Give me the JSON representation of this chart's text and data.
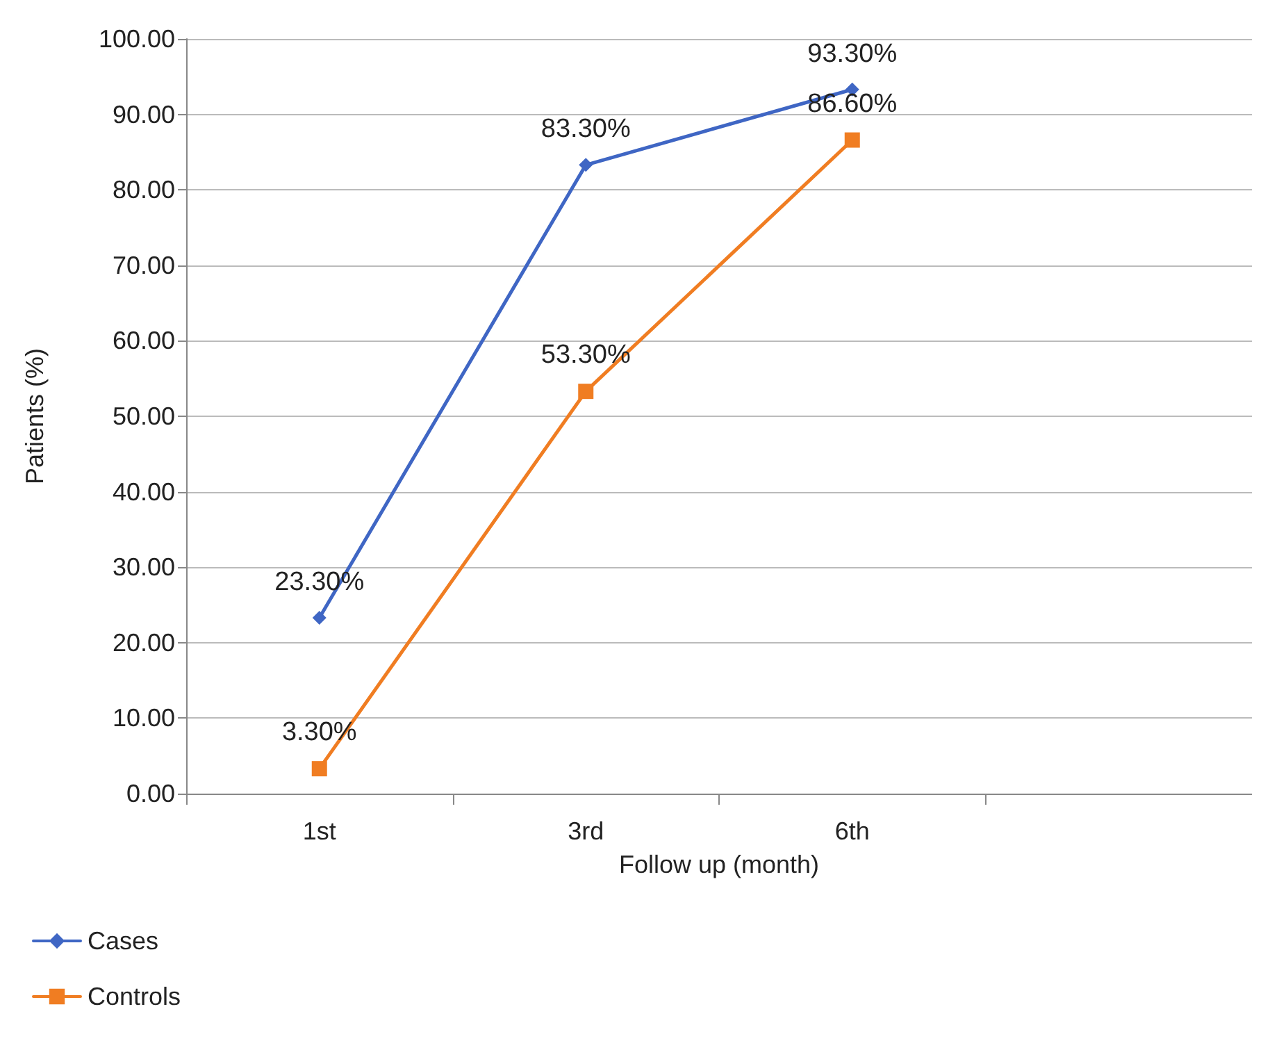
{
  "chart_data": {
    "type": "line",
    "xlabel": "Follow up (month)",
    "ylabel": "Patients (%)",
    "categories": [
      "1st",
      "3rd",
      "6th",
      null
    ],
    "series": [
      {
        "name": "Cases",
        "color": "#3f66c4",
        "marker": "diamond",
        "values": [
          23.3,
          83.3,
          93.3,
          null
        ],
        "value_labels": [
          "23.30%",
          "83.30%",
          "93.30%",
          null
        ]
      },
      {
        "name": "Controls",
        "color": "#f07d22",
        "marker": "square",
        "values": [
          3.3,
          53.3,
          86.6,
          null
        ],
        "value_labels": [
          "3.30%",
          "53.30%",
          "86.60%",
          null
        ]
      }
    ],
    "ylim": [
      0,
      100
    ],
    "yticks": [
      {
        "value": 0,
        "label": "0.00"
      },
      {
        "value": 10,
        "label": "10.00"
      },
      {
        "value": 20,
        "label": "20.00"
      },
      {
        "value": 30,
        "label": "30.00"
      },
      {
        "value": 40,
        "label": "40.00"
      },
      {
        "value": 50,
        "label": "50.00"
      },
      {
        "value": 60,
        "label": "60.00"
      },
      {
        "value": 70,
        "label": "70.00"
      },
      {
        "value": 80,
        "label": "80.00"
      },
      {
        "value": 90,
        "label": "90.00"
      },
      {
        "value": 100,
        "label": "100.00"
      }
    ],
    "grid": "y",
    "legend": "bottom left",
    "line_style": "solid"
  }
}
